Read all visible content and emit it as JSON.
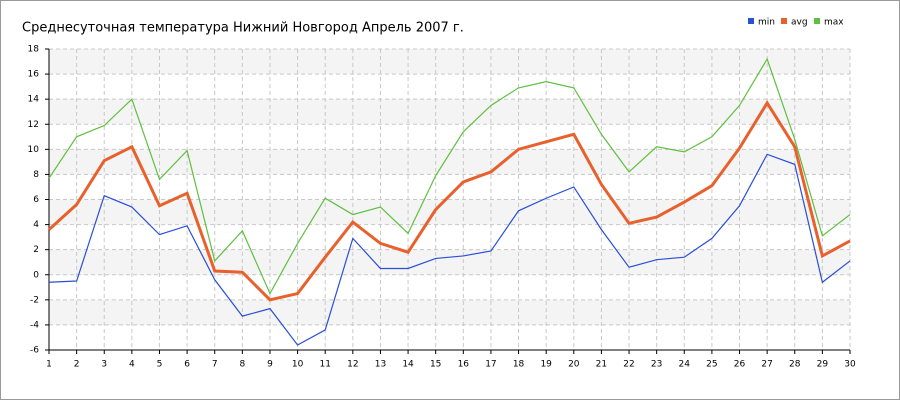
{
  "chart_data": {
    "type": "line",
    "title": "Среднесуточная температура Нижний Новгород  Апрель 2007 г.",
    "x": [
      1,
      2,
      3,
      4,
      5,
      6,
      7,
      8,
      9,
      10,
      11,
      12,
      13,
      14,
      15,
      16,
      17,
      18,
      19,
      20,
      21,
      22,
      23,
      24,
      25,
      26,
      27,
      28,
      29,
      30
    ],
    "xlim": [
      1,
      30
    ],
    "xticks": [
      1,
      2,
      3,
      4,
      5,
      6,
      7,
      8,
      9,
      10,
      11,
      12,
      13,
      14,
      15,
      16,
      17,
      18,
      19,
      20,
      21,
      22,
      23,
      24,
      25,
      26,
      27,
      28,
      29,
      30
    ],
    "ylim": [
      -6,
      18
    ],
    "yticks": [
      -6,
      -4,
      -2,
      0,
      2,
      4,
      6,
      8,
      10,
      12,
      14,
      16,
      18
    ],
    "grid": true,
    "legend": "top-right",
    "series": [
      {
        "name": "min",
        "color": "#2a4fd8",
        "values": [
          -0.6,
          -0.5,
          6.3,
          5.4,
          3.2,
          3.9,
          -0.4,
          -3.3,
          -2.7,
          -5.6,
          -4.4,
          2.9,
          0.5,
          0.5,
          1.3,
          1.5,
          1.9,
          5.1,
          6.1,
          7.0,
          3.6,
          0.6,
          1.2,
          1.4,
          2.9,
          5.5,
          9.6,
          8.8,
          -0.6,
          1.1
        ]
      },
      {
        "name": "avg",
        "color": "#e8612c",
        "values": [
          3.6,
          5.6,
          9.1,
          10.2,
          5.5,
          6.5,
          0.3,
          0.2,
          -2.0,
          -1.5,
          1.4,
          4.2,
          2.5,
          1.8,
          5.2,
          7.4,
          8.2,
          10.0,
          10.6,
          11.2,
          7.2,
          4.1,
          4.6,
          5.8,
          7.1,
          10.1,
          13.7,
          10.2,
          1.5,
          2.7
        ]
      },
      {
        "name": "max",
        "color": "#5fbf3f",
        "values": [
          7.7,
          11.0,
          11.9,
          14.0,
          7.6,
          9.9,
          1.1,
          3.5,
          -1.5,
          2.5,
          6.1,
          4.8,
          5.4,
          3.3,
          7.9,
          11.4,
          13.5,
          14.9,
          15.4,
          14.9,
          11.2,
          8.2,
          10.2,
          9.8,
          11.0,
          13.5,
          17.2,
          10.8,
          3.1,
          4.8
        ]
      }
    ]
  }
}
